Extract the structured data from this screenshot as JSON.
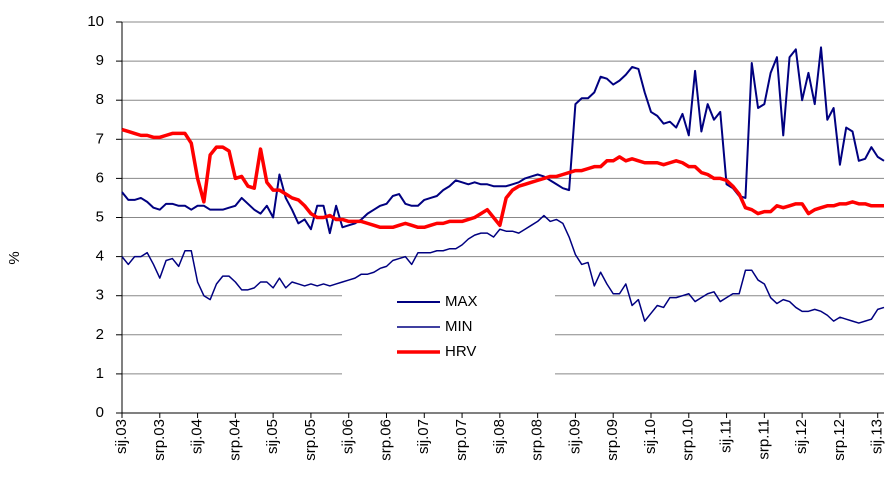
{
  "chart_data": {
    "type": "line",
    "y_label": "%",
    "categories": [
      "sij.03",
      null,
      null,
      null,
      null,
      null,
      "srp.03",
      null,
      null,
      null,
      null,
      null,
      "sij.04",
      null,
      null,
      null,
      null,
      null,
      "srp.04",
      null,
      null,
      null,
      null,
      null,
      "sij.05",
      null,
      null,
      null,
      null,
      null,
      "srp.05",
      null,
      null,
      null,
      null,
      null,
      "sij.06",
      null,
      null,
      null,
      null,
      null,
      "srp.06",
      null,
      null,
      null,
      null,
      null,
      "sij.07",
      null,
      null,
      null,
      null,
      null,
      "srp.07",
      null,
      null,
      null,
      null,
      null,
      "sij.08",
      null,
      null,
      null,
      null,
      null,
      "srp.08",
      null,
      null,
      null,
      null,
      null,
      "sij.09",
      null,
      null,
      null,
      null,
      null,
      "srp.09",
      null,
      null,
      null,
      null,
      null,
      "sij.10",
      null,
      null,
      null,
      null,
      null,
      "srp.10",
      null,
      null,
      null,
      null,
      null,
      "sij.11",
      null,
      null,
      null,
      null,
      null,
      "srp.11",
      null,
      null,
      null,
      null,
      null,
      "sij.12",
      null,
      null,
      null,
      null,
      null,
      "srp.12",
      null,
      null,
      null,
      null,
      null,
      "sij.13",
      null
    ],
    "series": [
      {
        "name": "MAX",
        "color": "#000080",
        "width": 2,
        "values": [
          5.65,
          5.45,
          5.45,
          5.5,
          5.4,
          5.25,
          5.2,
          5.35,
          5.35,
          5.3,
          5.3,
          5.2,
          5.3,
          5.3,
          5.2,
          5.2,
          5.2,
          5.25,
          5.3,
          5.5,
          5.35,
          5.2,
          5.1,
          5.3,
          5.0,
          6.1,
          5.5,
          5.2,
          4.85,
          4.95,
          4.7,
          5.3,
          5.3,
          4.6,
          5.3,
          4.75,
          4.8,
          4.85,
          4.95,
          5.1,
          5.2,
          5.3,
          5.35,
          5.55,
          5.6,
          5.35,
          5.3,
          5.3,
          5.45,
          5.5,
          5.55,
          5.7,
          5.8,
          5.95,
          5.9,
          5.85,
          5.9,
          5.85,
          5.85,
          5.8,
          5.8,
          5.8,
          5.85,
          5.9,
          6.0,
          6.05,
          6.1,
          6.05,
          5.95,
          5.85,
          5.75,
          5.7,
          7.9,
          8.05,
          8.05,
          8.2,
          8.6,
          8.55,
          8.4,
          8.5,
          8.65,
          8.85,
          8.8,
          8.2,
          7.7,
          7.6,
          7.4,
          7.45,
          7.3,
          7.65,
          7.1,
          8.75,
          7.2,
          7.9,
          7.5,
          7.7,
          5.85,
          5.75,
          5.55,
          5.5,
          8.95,
          7.8,
          7.9,
          8.7,
          9.1,
          7.1,
          9.1,
          9.3,
          8.0,
          8.7,
          7.9,
          9.35,
          7.5,
          7.8,
          6.35,
          7.3,
          7.2,
          6.45,
          6.5,
          6.8,
          6.55,
          6.45
        ]
      },
      {
        "name": "MIN",
        "color": "#000080",
        "width": 1.5,
        "values": [
          4.0,
          3.8,
          4.0,
          4.0,
          4.1,
          3.8,
          3.45,
          3.9,
          3.95,
          3.75,
          4.15,
          4.15,
          3.35,
          3.0,
          2.9,
          3.3,
          3.5,
          3.5,
          3.35,
          3.15,
          3.15,
          3.2,
          3.35,
          3.35,
          3.2,
          3.45,
          3.2,
          3.35,
          3.3,
          3.25,
          3.3,
          3.25,
          3.3,
          3.25,
          3.3,
          3.35,
          3.4,
          3.45,
          3.55,
          3.55,
          3.6,
          3.7,
          3.75,
          3.9,
          3.95,
          4.0,
          3.8,
          4.1,
          4.1,
          4.1,
          4.15,
          4.15,
          4.2,
          4.2,
          4.3,
          4.45,
          4.55,
          4.6,
          4.6,
          4.5,
          4.7,
          4.65,
          4.65,
          4.6,
          4.7,
          4.8,
          4.9,
          5.05,
          4.9,
          4.95,
          4.85,
          4.5,
          4.05,
          3.8,
          3.85,
          3.25,
          3.6,
          3.3,
          3.05,
          3.05,
          3.3,
          2.75,
          2.9,
          2.35,
          2.55,
          2.75,
          2.7,
          2.95,
          2.95,
          3.0,
          3.05,
          2.85,
          2.95,
          3.05,
          3.1,
          2.85,
          2.95,
          3.05,
          3.05,
          3.65,
          3.65,
          3.4,
          3.3,
          2.95,
          2.8,
          2.9,
          2.85,
          2.7,
          2.6,
          2.6,
          2.65,
          2.6,
          2.5,
          2.35,
          2.45,
          2.4,
          2.35,
          2.3,
          2.35,
          2.4,
          2.65,
          2.7
        ]
      },
      {
        "name": "HRV",
        "color": "#ff0000",
        "width": 3.5,
        "values": [
          7.25,
          7.2,
          7.15,
          7.1,
          7.1,
          7.05,
          7.05,
          7.1,
          7.15,
          7.15,
          7.15,
          6.9,
          6.0,
          5.4,
          6.6,
          6.8,
          6.8,
          6.7,
          6.0,
          6.05,
          5.8,
          5.75,
          6.75,
          5.9,
          5.7,
          5.7,
          5.6,
          5.5,
          5.45,
          5.3,
          5.1,
          5.0,
          5.0,
          5.05,
          4.95,
          4.95,
          4.9,
          4.9,
          4.9,
          4.85,
          4.8,
          4.75,
          4.75,
          4.75,
          4.8,
          4.85,
          4.8,
          4.75,
          4.75,
          4.8,
          4.85,
          4.85,
          4.9,
          4.9,
          4.9,
          4.95,
          5.0,
          5.1,
          5.2,
          5.0,
          4.8,
          5.5,
          5.7,
          5.8,
          5.85,
          5.9,
          5.95,
          6.0,
          6.05,
          6.05,
          6.1,
          6.15,
          6.2,
          6.2,
          6.25,
          6.3,
          6.3,
          6.45,
          6.45,
          6.55,
          6.45,
          6.5,
          6.45,
          6.4,
          6.4,
          6.4,
          6.35,
          6.4,
          6.45,
          6.4,
          6.3,
          6.3,
          6.15,
          6.1,
          6.0,
          6.0,
          5.95,
          5.8,
          5.6,
          5.25,
          5.2,
          5.1,
          5.15,
          5.15,
          5.3,
          5.25,
          5.3,
          5.35,
          5.35,
          5.1,
          5.2,
          5.25,
          5.3,
          5.3,
          5.35,
          5.35,
          5.4,
          5.35,
          5.35,
          5.3,
          5.3,
          5.3
        ]
      }
    ],
    "ylim": [
      0,
      10
    ],
    "yticks": [
      0,
      1,
      2,
      3,
      4,
      5,
      6,
      7,
      8,
      9,
      10
    ],
    "grid": true,
    "legend": "center"
  }
}
